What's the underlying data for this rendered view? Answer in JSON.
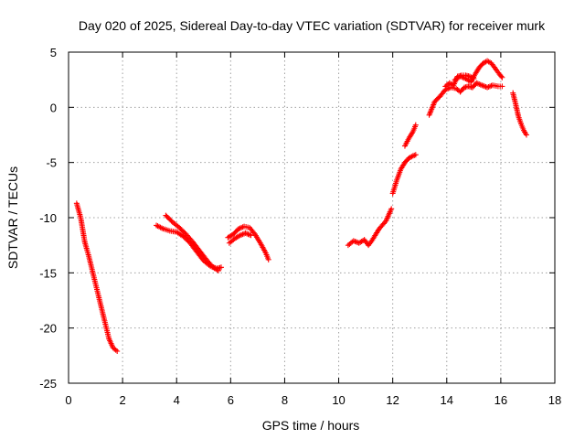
{
  "chart_data": {
    "type": "scatter",
    "title": "Day 020 of 2025, Sidereal Day-to-day VTEC variation (SDTVAR) for receiver murk",
    "xlabel": "GPS time / hours",
    "ylabel": "SDTVAR / TECUs",
    "xlim": [
      0,
      18
    ],
    "ylim": [
      -25,
      5
    ],
    "xticks": [
      "0",
      "2",
      "4",
      "6",
      "8",
      "10",
      "12",
      "14",
      "16",
      "18"
    ],
    "yticks": [
      "5",
      "0",
      "-5",
      "-10",
      "-15",
      "-20",
      "-25"
    ],
    "grid": true,
    "marker": "plus",
    "color": "#ff0000",
    "series": [
      {
        "name": "SDTVAR",
        "segments": [
          {
            "x": [
              0.3,
              0.45,
              0.6,
              0.75,
              0.9,
              1.05,
              1.2,
              1.35,
              1.5,
              1.65,
              1.8
            ],
            "y": [
              -8.7,
              -10.0,
              -12.2,
              -13.5,
              -15.0,
              -16.5,
              -18.0,
              -19.5,
              -21.0,
              -21.8,
              -22.1
            ]
          },
          {
            "x": [
              3.25,
              3.5,
              3.75,
              4.0,
              4.25,
              4.5,
              4.75,
              5.0,
              5.25,
              5.5,
              5.65
            ],
            "y": [
              -10.7,
              -11.0,
              -11.2,
              -11.3,
              -11.7,
              -12.3,
              -13.1,
              -13.9,
              -14.4,
              -14.6,
              -14.5
            ]
          },
          {
            "x": [
              3.6,
              3.85,
              4.1,
              4.35,
              4.6,
              4.85,
              5.1,
              5.35,
              5.55
            ],
            "y": [
              -9.8,
              -10.4,
              -10.9,
              -11.5,
              -12.2,
              -13.0,
              -13.8,
              -14.5,
              -14.8
            ]
          },
          {
            "x": [
              5.9,
              6.1,
              6.3,
              6.5,
              6.7,
              6.9,
              7.1,
              7.3,
              7.4
            ],
            "y": [
              -11.8,
              -11.5,
              -11.0,
              -10.8,
              -10.9,
              -11.5,
              -12.3,
              -13.2,
              -13.8
            ]
          },
          {
            "x": [
              5.95,
              6.15,
              6.35,
              6.55,
              6.75
            ],
            "y": [
              -12.3,
              -11.9,
              -11.6,
              -11.4,
              -11.6
            ]
          },
          {
            "x": [
              10.35,
              10.55,
              10.75,
              10.95,
              11.1,
              11.25,
              11.5,
              11.75,
              11.95
            ],
            "y": [
              -12.5,
              -12.1,
              -12.3,
              -12.0,
              -12.5,
              -12.0,
              -11.0,
              -10.3,
              -9.2
            ]
          },
          {
            "x": [
              12.0,
              12.15,
              12.3,
              12.45,
              12.6,
              12.75,
              12.85
            ],
            "y": [
              -7.8,
              -6.6,
              -5.6,
              -5.0,
              -4.6,
              -4.4,
              -4.3
            ]
          },
          {
            "x": [
              12.45,
              12.6,
              12.75,
              12.85
            ],
            "y": [
              -3.5,
              -2.8,
              -2.2,
              -1.6
            ]
          },
          {
            "x": [
              13.35,
              13.55,
              13.75,
              13.95,
              14.15,
              14.35,
              14.5,
              14.65,
              14.8,
              14.95,
              15.1,
              15.3,
              15.5,
              15.7,
              15.9,
              16.05
            ],
            "y": [
              -0.7,
              0.5,
              1.0,
              1.6,
              1.8,
              1.7,
              1.4,
              1.8,
              1.9,
              1.8,
              2.2,
              2.0,
              1.8,
              2.0,
              1.9,
              1.9
            ]
          },
          {
            "x": [
              14.3,
              14.5,
              14.7,
              14.9,
              15.05,
              15.2,
              15.35,
              15.5,
              15.65,
              15.8,
              15.95,
              16.05
            ],
            "y": [
              2.5,
              2.8,
              2.6,
              2.3,
              3.0,
              3.6,
              4.0,
              4.2,
              4.0,
              3.5,
              3.0,
              2.7
            ]
          },
          {
            "x": [
              13.95,
              14.1,
              14.25,
              14.4,
              14.55,
              14.7,
              14.85,
              15.0
            ],
            "y": [
              1.9,
              2.2,
              2.0,
              2.8,
              2.9,
              2.9,
              2.8,
              2.6
            ]
          },
          {
            "x": [
              16.45,
              16.55,
              16.65,
              16.75,
              16.85,
              16.95
            ],
            "y": [
              1.3,
              0.3,
              -0.8,
              -1.5,
              -2.1,
              -2.5
            ]
          }
        ]
      }
    ]
  }
}
